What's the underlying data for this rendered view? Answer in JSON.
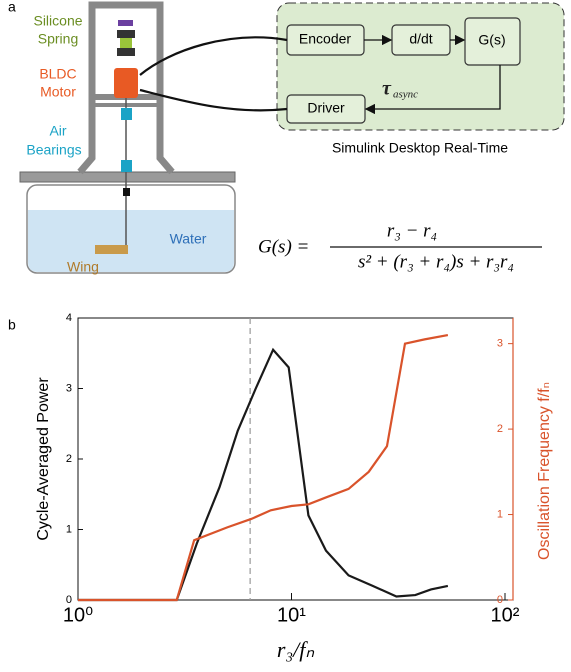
{
  "panel_a": {
    "label": "a",
    "apparatus": {
      "spring": [
        "Silicone",
        "Spring"
      ],
      "motor": [
        "BLDC",
        "Motor"
      ],
      "bearings": [
        "Air",
        "Bearings"
      ],
      "water": "Water",
      "wing": "Wing"
    },
    "controller": {
      "encoder": "Encoder",
      "derivative": "d/dt",
      "transfer": "G(s)",
      "driver": "Driver",
      "tau": "τ",
      "tau_sub": "async",
      "caption": "Simulink Desktop Real-Time"
    },
    "equation": {
      "lhs": "G(s) =",
      "numerator": "r₃ − r₄",
      "denominator": "s² + (r₃ + r₄)s + r₃r₄"
    }
  },
  "chart_data": {
    "type": "line",
    "panel_label": "b",
    "xlabel": "r₃/fₙ",
    "ylabel": "Cycle-Averaged Power",
    "y2label": "Oscillation Frequency f/fₙ",
    "log_x": true,
    "xlim": [
      1,
      109
    ],
    "xticks": [
      {
        "value": 1,
        "label": "10⁰"
      },
      {
        "value": 10,
        "label": "10¹"
      },
      {
        "value": 100,
        "label": "10²"
      }
    ],
    "ylim": [
      0,
      4
    ],
    "yticks": [
      0,
      1,
      2,
      3,
      4
    ],
    "y2lim": [
      0,
      3.3
    ],
    "y2ticks": [
      0,
      1,
      2,
      3
    ],
    "y2color": "#d9532b",
    "vline": 6.4,
    "series": [
      {
        "color": "#1a1a1a",
        "x": [
          1,
          2.9,
          3.6,
          4.6,
          5.6,
          6.8,
          8.2,
          9.7,
          12,
          14.5,
          18.5,
          24,
          31,
          38,
          45,
          54
        ],
        "values": [
          0,
          0,
          0.8,
          1.6,
          2.4,
          3.0,
          3.55,
          3.3,
          1.2,
          0.7,
          0.35,
          0.2,
          0.05,
          0.07,
          0.15,
          0.2
        ]
      },
      {
        "color": "#d9532b",
        "axis": "y2",
        "x": [
          1,
          2.9,
          3.5,
          5,
          6.5,
          8,
          10,
          12,
          14.5,
          18.5,
          23,
          28,
          34,
          42,
          54
        ],
        "values": [
          0,
          0,
          0.7,
          0.85,
          0.95,
          1.05,
          1.1,
          1.12,
          1.2,
          1.3,
          1.5,
          1.8,
          3.0,
          3.05,
          3.1
        ]
      }
    ]
  }
}
